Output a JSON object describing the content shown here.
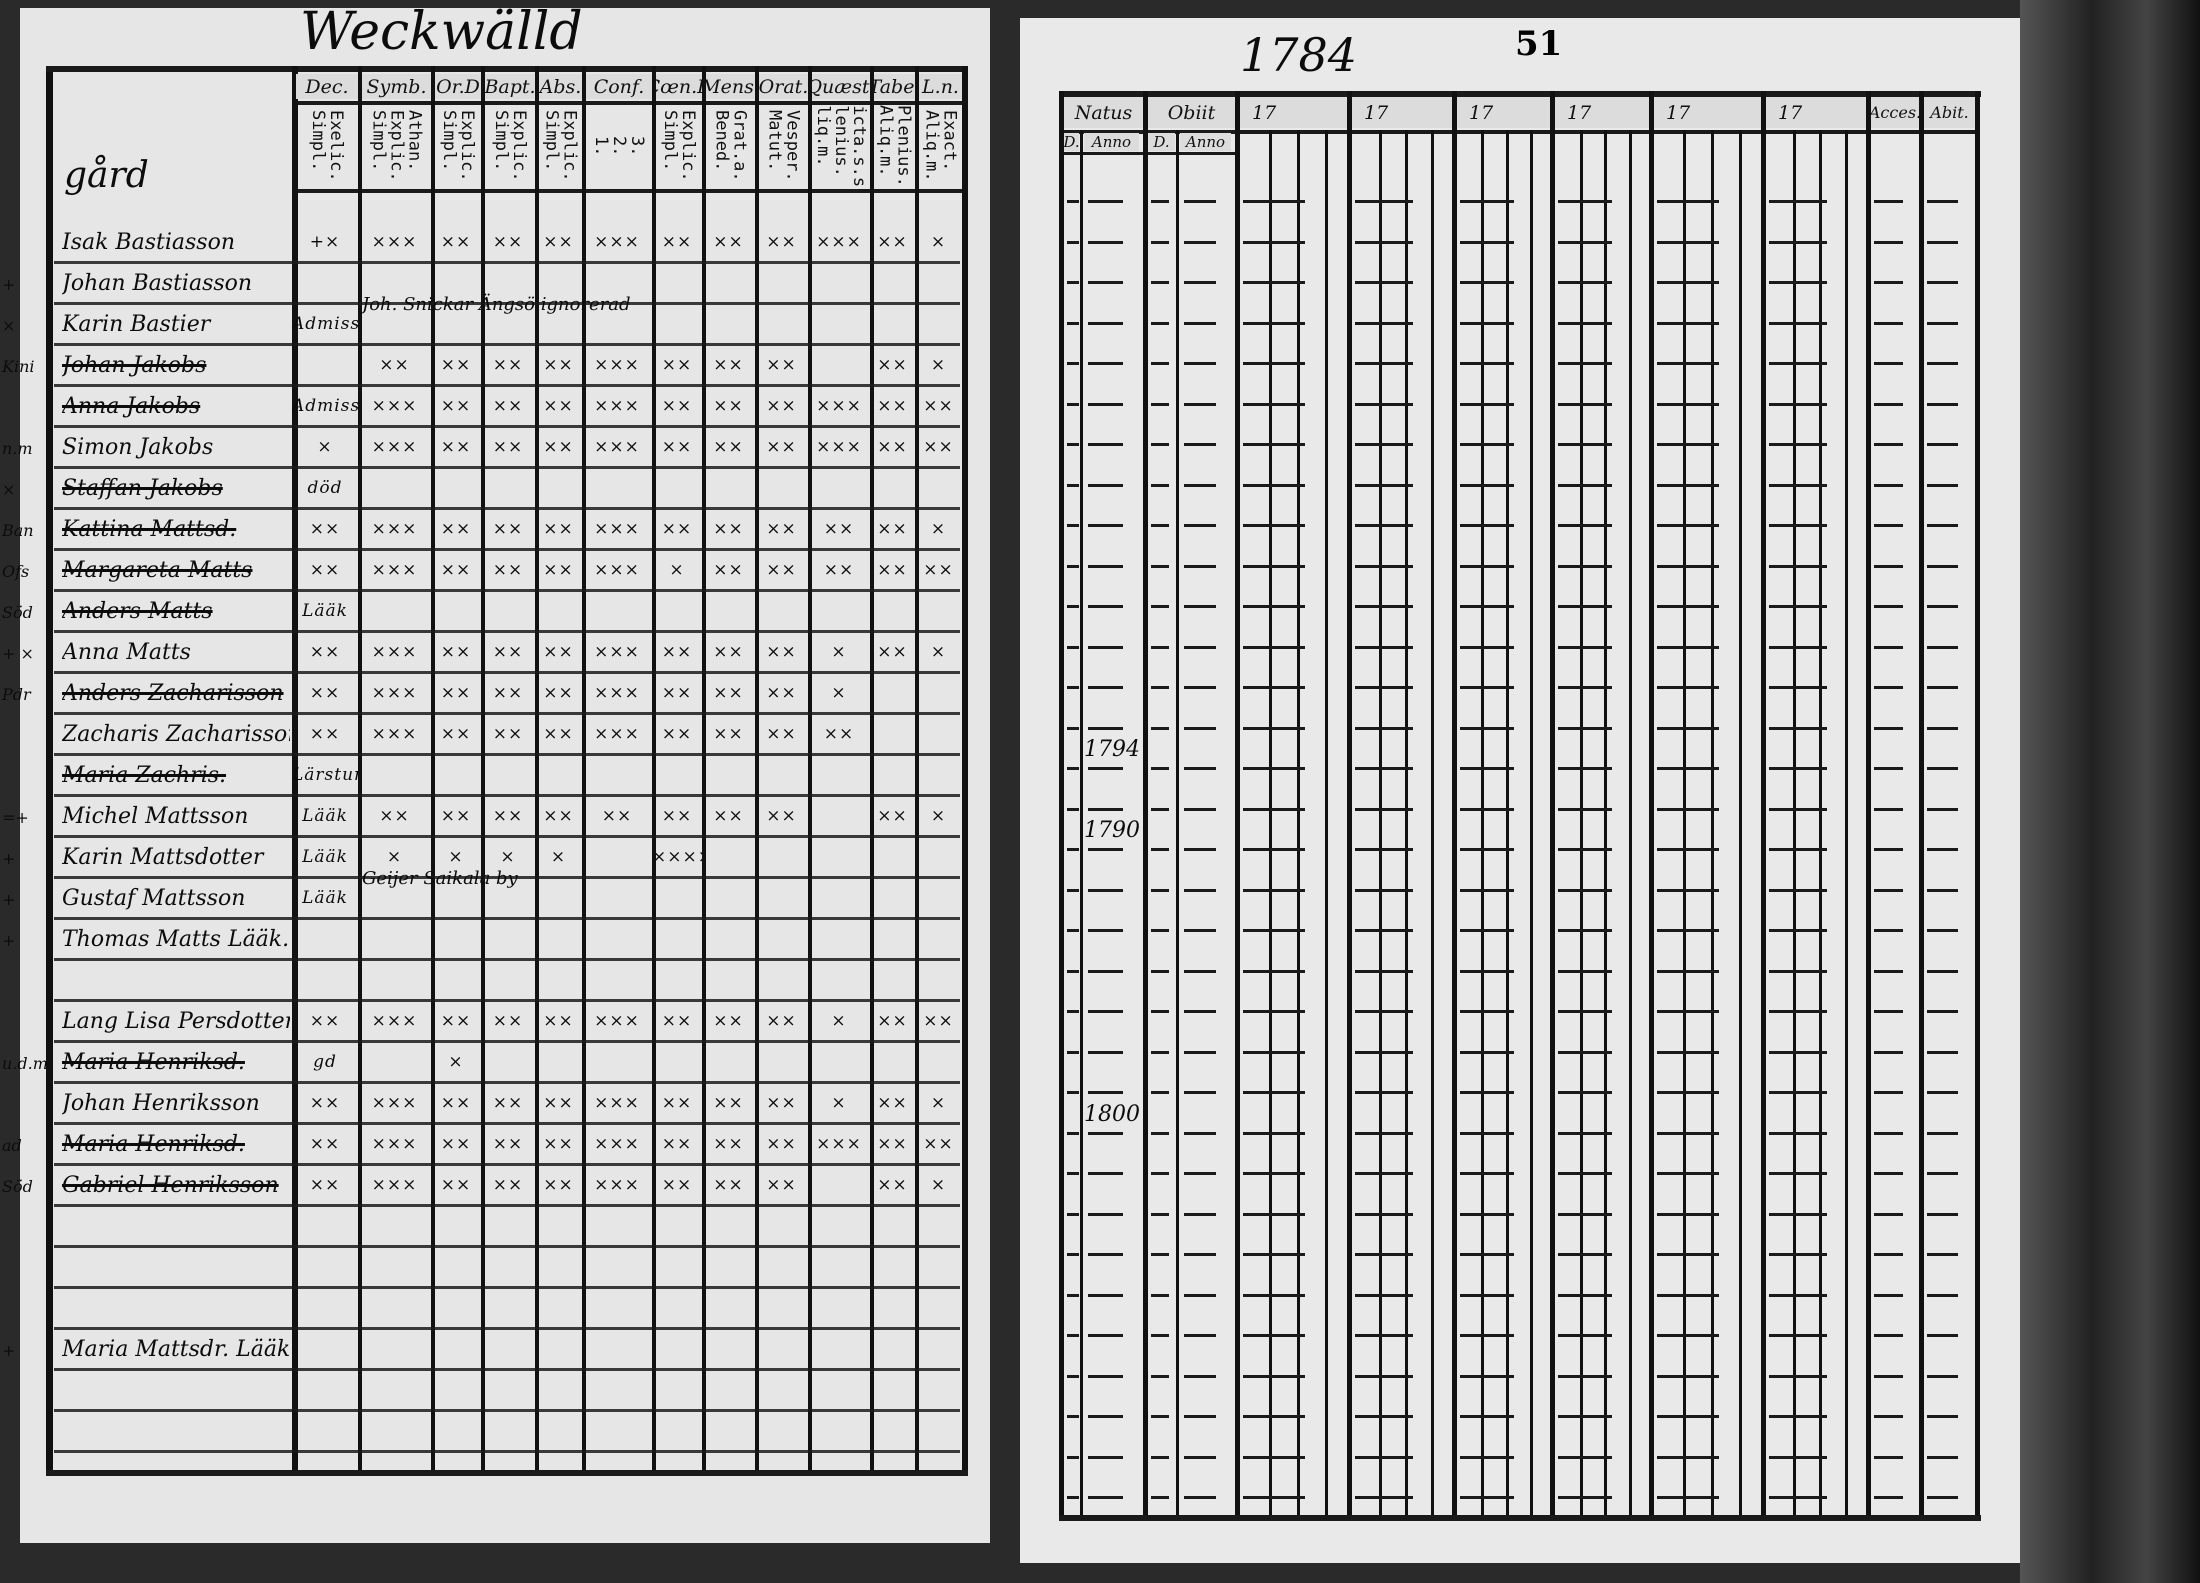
{
  "left_page": {
    "title": "Weckwälld",
    "name_header": "gård",
    "columns": [
      {
        "label": "Dec.",
        "sub": "Exelic.\nSimpl."
      },
      {
        "label": "Symb.",
        "sub": "Athan.\nExplic.\nSimpl."
      },
      {
        "label": "Or.D",
        "sub": "Explic.\nSimpl."
      },
      {
        "label": "Bapt.",
        "sub": "Explic.\nSimpl."
      },
      {
        "label": "Abs.",
        "sub": "Explic.\nSimpl."
      },
      {
        "label": "Conf.",
        "sub": "3.\n2.\n1."
      },
      {
        "label": "Cœn.D",
        "sub": "Explic.\nSimpl."
      },
      {
        "label": "Mens.",
        "sub": "Grat.a.\nBened."
      },
      {
        "label": "Orat.",
        "sub": "Vesper.\nMatut."
      },
      {
        "label": "Quæst.",
        "sub": "Dicta.s.s.\nPlenius.\nAliq.m."
      },
      {
        "label": "Tabe.",
        "sub": "Plenius.\nAliq.m."
      },
      {
        "label": "L.n.",
        "sub": "Exact.\nAliq.m."
      }
    ],
    "rows": [
      {
        "name": "Isak Bastiasson",
        "margin": "",
        "struck": false,
        "marks": [
          "+×",
          "×××",
          "××",
          "××",
          "××",
          "×××",
          "××",
          "××",
          "××",
          "×××",
          "××",
          "×"
        ]
      },
      {
        "name": "Johan Bastiasson",
        "margin": "+",
        "struck": false,
        "marks": [
          "",
          "",
          "",
          "",
          "",
          "",
          "",
          "",
          "",
          "",
          "",
          ""
        ],
        "note": "Joh. Snickar Ängsö ignorerad"
      },
      {
        "name": "Karin Bastier",
        "margin": "×",
        "struck": false,
        "marks": [
          "Admiss.",
          "",
          "",
          "",
          "",
          "",
          "",
          "",
          "",
          "",
          "",
          ""
        ]
      },
      {
        "name": "Johan Jakobs",
        "margin": "Kini",
        "struck": true,
        "marks": [
          "",
          "××",
          "××",
          "××",
          "××",
          "×××",
          "××",
          "××",
          "××",
          "",
          "××",
          "×"
        ]
      },
      {
        "name": "Anna Jakobs",
        "margin": "",
        "struck": true,
        "marks": [
          "Admiss.",
          "×××",
          "××",
          "××",
          "××",
          "×××",
          "××",
          "××",
          "××",
          "×××",
          "××",
          "××"
        ]
      },
      {
        "name": "Simon Jakobs",
        "margin": "n.m",
        "struck": false,
        "marks": [
          "×",
          "×××",
          "××",
          "××",
          "××",
          "×××",
          "××",
          "××",
          "××",
          "×××",
          "××",
          "××"
        ]
      },
      {
        "name": "Staffan Jakobs",
        "margin": "×",
        "struck": true,
        "marks": [
          "död",
          "",
          "",
          "",
          "",
          "",
          "",
          "",
          "",
          "",
          "",
          ""
        ]
      },
      {
        "name": "Kattina Mattsd.",
        "margin": "Ban",
        "struck": true,
        "marks": [
          "××",
          "×××",
          "××",
          "××",
          "××",
          "×××",
          "××",
          "××",
          "××",
          "××",
          "××",
          "×"
        ]
      },
      {
        "name": "Margareta Matts",
        "margin": "Ofs",
        "struck": true,
        "marks": [
          "××",
          "×××",
          "××",
          "××",
          "××",
          "×××",
          "×",
          "××",
          "××",
          "××",
          "××",
          "××"
        ]
      },
      {
        "name": "Anders Matts",
        "margin": "Söd",
        "struck": true,
        "marks": [
          "Lääk",
          "",
          "",
          "",
          "",
          "",
          "",
          "",
          "",
          "",
          "",
          ""
        ]
      },
      {
        "name": "Anna Matts",
        "margin": "+ ×",
        "struck": false,
        "marks": [
          "××",
          "×××",
          "××",
          "××",
          "××",
          "×××",
          "××",
          "××",
          "××",
          "×",
          "××",
          "×"
        ]
      },
      {
        "name": "Anders Zacharisson",
        "margin": "Pdr",
        "struck": true,
        "marks": [
          "××",
          "×××",
          "××",
          "××",
          "××",
          "×××",
          "××",
          "××",
          "××",
          "×",
          "",
          ""
        ]
      },
      {
        "name": "Zacharis Zacharisson",
        "margin": "",
        "struck": false,
        "marks": [
          "××",
          "×××",
          "××",
          "××",
          "××",
          "×××",
          "××",
          "××",
          "××",
          "××",
          "",
          ""
        ]
      },
      {
        "name": "Maria Zachris.",
        "margin": "",
        "struck": true,
        "marks": [
          "Lärstum",
          "",
          "",
          "",
          "",
          "",
          "",
          "",
          "",
          "",
          "",
          ""
        ]
      },
      {
        "name": "Michel Mattsson",
        "margin": "=+",
        "struck": false,
        "marks": [
          "Lääk",
          "××",
          "××",
          "××",
          "××",
          "××",
          "××",
          "××",
          "××",
          "",
          "××",
          "×"
        ]
      },
      {
        "name": "Karin Mattsdotter",
        "margin": "+",
        "struck": false,
        "marks": [
          "Lääk",
          "×",
          "×",
          "×",
          "×",
          "",
          "××××",
          "",
          "",
          "",
          "",
          ""
        ],
        "note": "Geijer Saikala by"
      },
      {
        "name": "Gustaf Mattsson",
        "margin": "+",
        "struck": false,
        "marks": [
          "Lääk",
          "",
          "",
          "",
          "",
          "",
          "",
          "",
          "",
          "",
          "",
          ""
        ]
      },
      {
        "name": "Thomas Matts Lääk.",
        "margin": "+",
        "struck": false,
        "marks": [
          "",
          "",
          "",
          "",
          "",
          "",
          "",
          "",
          "",
          "",
          "",
          ""
        ]
      },
      {
        "name": "",
        "margin": "",
        "struck": false,
        "marks": [
          "",
          "",
          "",
          "",
          "",
          "",
          "",
          "",
          "",
          "",
          "",
          ""
        ]
      },
      {
        "name": "Lang Lisa Persdotter",
        "margin": "",
        "struck": false,
        "marks": [
          "××",
          "×××",
          "××",
          "××",
          "××",
          "×××",
          "××",
          "××",
          "××",
          "×",
          "××",
          "××"
        ]
      },
      {
        "name": "Maria Henriksd.",
        "margin": "u.d.m",
        "struck": true,
        "marks": [
          "gd",
          "",
          "×",
          "",
          "",
          "",
          "",
          "",
          "",
          "",
          "",
          ""
        ]
      },
      {
        "name": "Johan Henriksson",
        "margin": "",
        "struck": false,
        "marks": [
          "××",
          "×××",
          "××",
          "××",
          "××",
          "×××",
          "××",
          "××",
          "××",
          "×",
          "××",
          "×"
        ]
      },
      {
        "name": "Maria Henriksd.",
        "margin": "ad",
        "struck": true,
        "marks": [
          "××",
          "×××",
          "××",
          "××",
          "××",
          "×××",
          "××",
          "××",
          "××",
          "×××",
          "××",
          "××"
        ]
      },
      {
        "name": "Gabriel Henriksson",
        "margin": "Söd",
        "struck": true,
        "marks": [
          "××",
          "×××",
          "××",
          "××",
          "××",
          "×××",
          "××",
          "××",
          "××",
          "",
          "××",
          "×"
        ]
      },
      {
        "name": "",
        "margin": "",
        "struck": false,
        "marks": [
          "",
          "",
          "",
          "",
          "",
          "",
          "",
          "",
          "",
          "",
          "",
          ""
        ]
      },
      {
        "name": "",
        "margin": "",
        "struck": false,
        "marks": [
          "",
          "",
          "",
          "",
          "",
          "",
          "",
          "",
          "",
          "",
          "",
          ""
        ]
      },
      {
        "name": "",
        "margin": "",
        "struck": false,
        "marks": [
          "",
          "",
          "",
          "",
          "",
          "",
          "",
          "",
          "",
          "",
          "",
          ""
        ]
      },
      {
        "name": "Maria Mattsdr. Lääk.",
        "margin": "+",
        "struck": false,
        "marks": [
          "",
          "",
          "",
          "",
          "",
          "",
          "",
          "",
          "",
          "",
          "",
          ""
        ]
      },
      {
        "name": "",
        "margin": "",
        "struck": false,
        "marks": [
          "",
          "",
          "",
          "",
          "",
          "",
          "",
          "",
          "",
          "",
          "",
          ""
        ]
      },
      {
        "name": "",
        "margin": "",
        "struck": false,
        "marks": [
          "",
          "",
          "",
          "",
          "",
          "",
          "",
          "",
          "",
          "",
          "",
          ""
        ]
      }
    ]
  },
  "right_page": {
    "year": "1784",
    "page_number": "51",
    "columns": [
      {
        "label": "Natus",
        "sub": [
          "D.",
          "Anno"
        ]
      },
      {
        "label": "Obiit",
        "sub": [
          "D.",
          "Anno"
        ]
      },
      {
        "label": "17"
      },
      {
        "label": "17"
      },
      {
        "label": "17"
      },
      {
        "label": "17"
      },
      {
        "label": "17"
      },
      {
        "label": "17"
      },
      {
        "label": "Acces."
      },
      {
        "label": "Abit."
      }
    ],
    "natus_anno_entries": [
      {
        "row": 14,
        "value": "1794"
      },
      {
        "row": 16,
        "value": "1790"
      },
      {
        "row": 23,
        "value": "1800"
      }
    ]
  },
  "colors": {
    "paper": "#e6e6e6",
    "ink": "#111111",
    "background": "#2a2a2a"
  }
}
